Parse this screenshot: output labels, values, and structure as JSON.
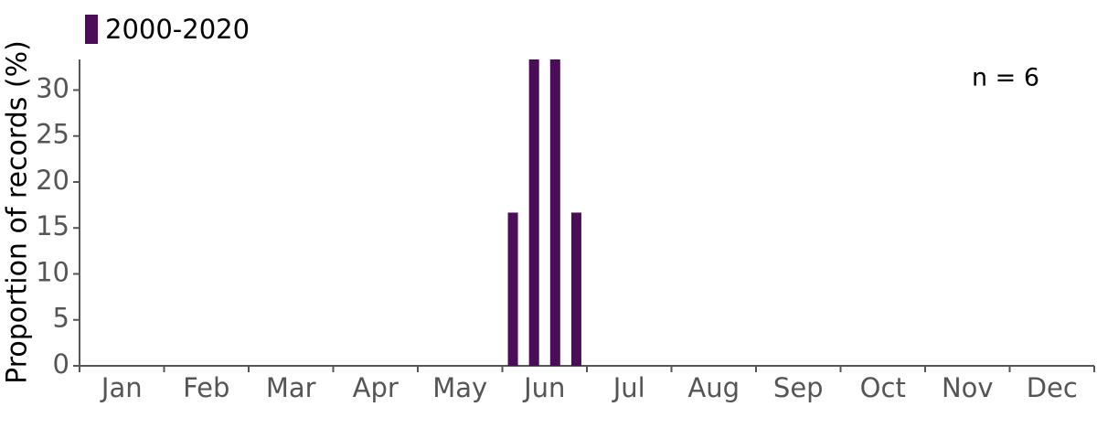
{
  "chart_data": {
    "type": "bar",
    "y_label": "Proportion of records (%)",
    "annotation": "n = 6",
    "categories": [
      "Jan",
      "Feb",
      "Mar",
      "Apr",
      "May",
      "Jun",
      "Jul",
      "Aug",
      "Sep",
      "Oct",
      "Nov",
      "Dec"
    ],
    "series": [
      {
        "name": "2000-2020",
        "color": "#4b0d57",
        "values": [
          [
            0,
            0,
            0,
            0
          ],
          [
            0,
            0,
            0,
            0
          ],
          [
            0,
            0,
            0,
            0
          ],
          [
            0,
            0,
            0,
            0
          ],
          [
            0,
            0,
            0,
            0
          ],
          [
            16.67,
            33.33,
            33.33,
            16.67
          ],
          [
            0,
            0,
            0,
            0
          ],
          [
            0,
            0,
            0,
            0
          ],
          [
            0,
            0,
            0,
            0
          ],
          [
            0,
            0,
            0,
            0
          ],
          [
            0,
            0,
            0,
            0
          ],
          [
            0,
            0,
            0,
            0
          ]
        ]
      }
    ],
    "ylim": [
      0,
      33.33
    ],
    "yticks": [
      0,
      5,
      10,
      15,
      20,
      25,
      30
    ],
    "legend": "top-left"
  }
}
